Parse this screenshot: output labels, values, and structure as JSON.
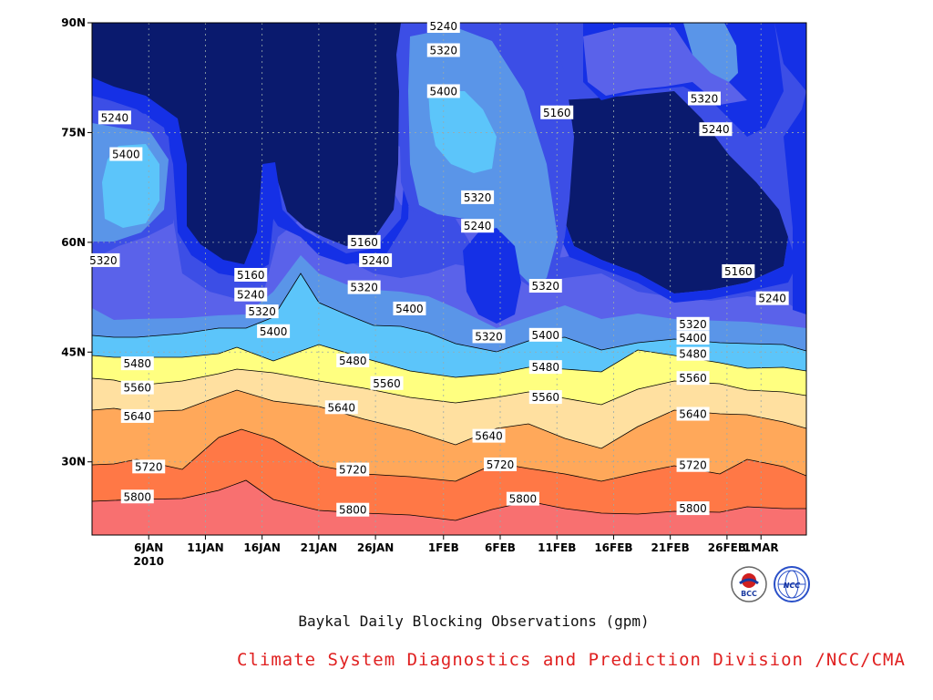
{
  "chart_data": {
    "type": "heatmap",
    "title": "",
    "xlabel": "",
    "ylabel": "",
    "x_tick_labels": [
      "6JAN",
      "11JAN",
      "16JAN",
      "21JAN",
      "26JAN",
      "1FEB",
      "6FEB",
      "11FEB",
      "16FEB",
      "21FEB",
      "26FEB",
      "1MAR"
    ],
    "x_sublabel": "2010",
    "x_range": [
      "2010-01-01",
      "2010-03-05"
    ],
    "y_tick_labels": [
      "30N",
      "45N",
      "60N",
      "75N",
      "90N"
    ],
    "y_range": [
      20,
      90
    ],
    "levels": [
      5160,
      5240,
      5320,
      5400,
      5480,
      5560,
      5640,
      5720,
      5800
    ],
    "colors": [
      "#0a1a6e",
      "#1530e6",
      "#3c4ee6",
      "#5a62ea",
      "#5a95e8",
      "#5cc5fa",
      "#ffff80",
      "#ffe0a0",
      "#ffa85a",
      "#ff7846",
      "#f87070"
    ],
    "contour_labels": [
      {
        "text": "5240",
        "date": "2010-01-03",
        "lat": 77
      },
      {
        "text": "5400",
        "date": "2010-01-04",
        "lat": 72
      },
      {
        "text": "5320",
        "date": "2010-01-02",
        "lat": 57.5
      },
      {
        "text": "5160",
        "date": "2010-01-15",
        "lat": 55.5
      },
      {
        "text": "5240",
        "date": "2010-01-15",
        "lat": 52.8
      },
      {
        "text": "5320",
        "date": "2010-01-16",
        "lat": 50.5
      },
      {
        "text": "5400",
        "date": "2010-01-17",
        "lat": 47.8
      },
      {
        "text": "5160",
        "date": "2010-01-25",
        "lat": 60
      },
      {
        "text": "5240",
        "date": "2010-01-26",
        "lat": 57.5
      },
      {
        "text": "5320",
        "date": "2010-01-25",
        "lat": 53.8
      },
      {
        "text": "5400",
        "date": "2010-01-29",
        "lat": 50.9
      },
      {
        "text": "5240",
        "date": "2010-02-01",
        "lat": 89.5
      },
      {
        "text": "5320",
        "date": "2010-02-01",
        "lat": 86.2
      },
      {
        "text": "5400",
        "date": "2010-02-01",
        "lat": 80.6
      },
      {
        "text": "5160",
        "date": "2010-02-11",
        "lat": 77.7
      },
      {
        "text": "5320",
        "date": "2010-02-04",
        "lat": 66.1
      },
      {
        "text": "5240",
        "date": "2010-02-04",
        "lat": 62.2
      },
      {
        "text": "5320",
        "date": "2010-02-10",
        "lat": 54
      },
      {
        "text": "5320",
        "date": "2010-02-24",
        "lat": 79.6
      },
      {
        "text": "5240",
        "date": "2010-02-25",
        "lat": 75.4
      },
      {
        "text": "5160",
        "date": "2010-02-27",
        "lat": 56
      },
      {
        "text": "5240",
        "date": "2010-03-02",
        "lat": 52.3
      },
      {
        "text": "5320",
        "date": "2010-02-23",
        "lat": 48.8
      },
      {
        "text": "5400",
        "date": "2010-02-23",
        "lat": 46.9
      },
      {
        "text": "5480",
        "date": "2010-02-23",
        "lat": 44.7
      },
      {
        "text": "5560",
        "date": "2010-02-23",
        "lat": 41.4
      },
      {
        "text": "5640",
        "date": "2010-02-23",
        "lat": 36.5
      },
      {
        "text": "5720",
        "date": "2010-02-23",
        "lat": 29.5
      },
      {
        "text": "5800",
        "date": "2010-02-23",
        "lat": 23.6
      },
      {
        "text": "5320",
        "date": "2010-02-05",
        "lat": 47.1
      },
      {
        "text": "5400",
        "date": "2010-02-10",
        "lat": 47.3
      },
      {
        "text": "5480",
        "date": "2010-01-05",
        "lat": 43.4
      },
      {
        "text": "5560",
        "date": "2010-01-05",
        "lat": 40.1
      },
      {
        "text": "5640",
        "date": "2010-01-05",
        "lat": 36.2
      },
      {
        "text": "5720",
        "date": "2010-01-06",
        "lat": 29.3
      },
      {
        "text": "5800",
        "date": "2010-01-05",
        "lat": 25.2
      },
      {
        "text": "5480",
        "date": "2010-01-24",
        "lat": 43.8
      },
      {
        "text": "5560",
        "date": "2010-01-27",
        "lat": 40.7
      },
      {
        "text": "5640",
        "date": "2010-01-23",
        "lat": 37.4
      },
      {
        "text": "5720",
        "date": "2010-01-24",
        "lat": 28.9
      },
      {
        "text": "5800",
        "date": "2010-01-24",
        "lat": 23.4
      },
      {
        "text": "5480",
        "date": "2010-02-10",
        "lat": 42.9
      },
      {
        "text": "5560",
        "date": "2010-02-10",
        "lat": 38.8
      },
      {
        "text": "5640",
        "date": "2010-02-05",
        "lat": 33.5
      },
      {
        "text": "5720",
        "date": "2010-02-06",
        "lat": 29.6
      },
      {
        "text": "5800",
        "date": "2010-02-08",
        "lat": 24.9
      }
    ],
    "grid": true
  },
  "footer": {
    "title": "Baykal Daily Blocking Observations (gpm)",
    "credit": "Climate System Diagnostics and Prediction Division /NCC/CMA"
  },
  "logos": [
    {
      "icon": "bcc-logo-icon",
      "text": "BCC"
    },
    {
      "icon": "ncc-logo-icon",
      "text": "NCC"
    }
  ]
}
